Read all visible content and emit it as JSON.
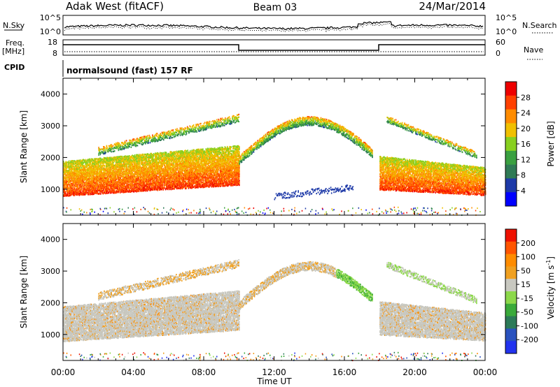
{
  "header": {
    "station": "Adak West (fitACF)",
    "beam": "Beam 03",
    "date": "24/Mar/2014"
  },
  "strip": {
    "nsky_label": "N.Sky",
    "nsky_ticks": [
      "10^5",
      "10^0"
    ],
    "nsearch_label": "N.Search",
    "nsearch_ticks": [
      "10^5",
      "10^0"
    ],
    "freq_label": "Freq.",
    "freq_unit": "[MHz]",
    "freq_ticks": [
      "18",
      "8"
    ],
    "nave_label": "Nave",
    "nave_ticks": [
      "60",
      "0"
    ],
    "cpid_label": "CPID",
    "cpid_text": "normalsound (fast) 157 RF"
  },
  "colors": {
    "power_scale": [
      "#0000ff",
      "#1e3aa8",
      "#2f7a55",
      "#3aa040",
      "#88d020",
      "#f0c000",
      "#ff8c00",
      "#ff4000",
      "#ee0000"
    ],
    "velocity_scale": [
      "#2233ee",
      "#2a52be",
      "#2c7a58",
      "#3aaa3a",
      "#8cd84a",
      "#c8c8c0",
      "#f0a020",
      "#ff8c00",
      "#ff5500",
      "#ee1100"
    ],
    "velocity_gray": "#c8c8c0"
  },
  "chart_data": [
    {
      "type": "heatmap",
      "name": "power",
      "xlabel": "",
      "ylabel": "Slant Range [km]",
      "ylim": [
        180,
        4500
      ],
      "yticks": [
        "1000",
        "2000",
        "3000",
        "4000"
      ],
      "colorbar_label": "Power [dB]",
      "colorbar_ticks": [
        "28",
        "24",
        "20",
        "16",
        "12",
        "8",
        "4"
      ],
      "colorbar_range": [
        0,
        30
      ]
    },
    {
      "type": "heatmap",
      "name": "velocity",
      "xlabel": "Time UT",
      "ylabel": "Slant Range [km]",
      "ylim": [
        180,
        4500
      ],
      "yticks": [
        "1000",
        "2000",
        "3000",
        "4000"
      ],
      "xticks": [
        "00:00",
        "04:00",
        "08:00",
        "12:00",
        "16:00",
        "20:00",
        "00:00"
      ],
      "colorbar_label": "Velocity [m s",
      "colorbar_label_sup": "-1",
      "colorbar_label_end": "]",
      "colorbar_ticks": [
        "200",
        "100",
        "50",
        "15",
        "-15",
        "-50",
        "-100",
        "-200"
      ],
      "colorbar_range": [
        -250,
        250
      ]
    }
  ],
  "axis": {
    "time_label": "Time UT",
    "time_ticks": [
      "00:00",
      "04:00",
      "08:00",
      "12:00",
      "16:00",
      "20:00",
      "00:00"
    ]
  }
}
